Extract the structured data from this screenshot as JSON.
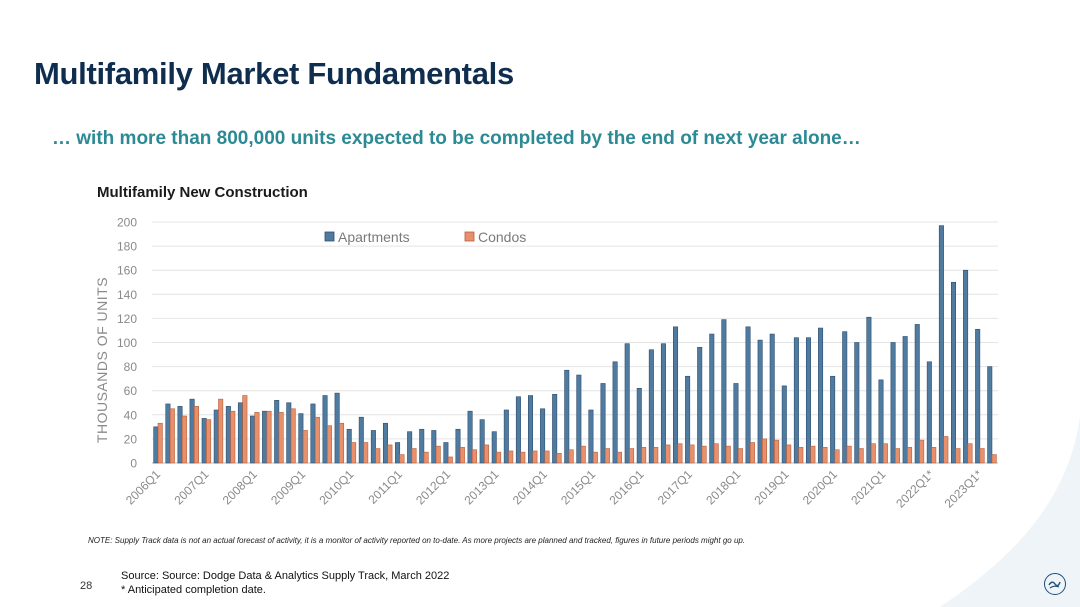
{
  "header": {
    "title": "Multifamily Market Fundamentals",
    "subtitle": "… with more than 800,000 units expected to be completed by the end of next year alone…"
  },
  "footer": {
    "page_number": "28",
    "source_line1": "Source: Source: Dodge Data & Analytics Supply Track, March 2022",
    "source_line2": "* Anticipated completion date.",
    "note": "NOTE:  Supply Track data is not an actual forecast of activity, it is a monitor of activity reported on to-date. As more projects are planned and tracked, figures in future periods might go up."
  },
  "colors": {
    "apartments": "#4f7ba0",
    "condos": "#e8906c",
    "title": "#0f2d4f",
    "subtitle": "#2c8a95"
  },
  "chart_data": {
    "type": "bar",
    "title": "Multifamily New Construction",
    "ylabel": "THOUSANDS OF UNITS",
    "xlabel": "",
    "ylim": [
      0,
      200
    ],
    "yticks": [
      0,
      20,
      40,
      60,
      80,
      100,
      120,
      140,
      160,
      180,
      200
    ],
    "grid": true,
    "legend": "top",
    "x_tick_labels": [
      "2006Q1",
      "2007Q1",
      "2008Q1",
      "2009Q1",
      "2010Q1",
      "2011Q1",
      "2012Q1",
      "2013Q1",
      "2014Q1",
      "2015Q1",
      "2016Q1",
      "2017Q1",
      "2018Q1",
      "2019Q1",
      "2020Q1",
      "2021Q1",
      "2022Q1*",
      "2023Q1*"
    ],
    "series": [
      {
        "name": "Apartments",
        "values": [
          30,
          49,
          47,
          53,
          37,
          44,
          47,
          50,
          39,
          43,
          52,
          50,
          41,
          49,
          56,
          58,
          28,
          38,
          27,
          33,
          17,
          26,
          28,
          27,
          17,
          28,
          43,
          36,
          26,
          44,
          55,
          56,
          45,
          57,
          77,
          73,
          44,
          66,
          84,
          99,
          62,
          94,
          99,
          113,
          72,
          96,
          107,
          119,
          66,
          113,
          102,
          107,
          64,
          104,
          104,
          112,
          72,
          109,
          100,
          121,
          69,
          100,
          105,
          115,
          84,
          197,
          150,
          160,
          111,
          80
        ]
      },
      {
        "name": "Condos",
        "values": [
          33,
          45,
          39,
          47,
          36,
          53,
          43,
          56,
          42,
          43,
          42,
          45,
          27,
          38,
          31,
          33,
          17,
          17,
          12,
          15,
          7,
          12,
          9,
          14,
          5,
          13,
          11,
          15,
          9,
          10,
          9,
          10,
          10,
          8,
          11,
          14,
          9,
          12,
          9,
          12,
          13,
          13,
          15,
          16,
          15,
          14,
          16,
          14,
          12,
          17,
          20,
          19,
          15,
          13,
          14,
          13,
          11,
          14,
          12,
          16,
          16,
          12,
          13,
          19,
          13,
          22,
          12,
          16,
          12,
          7
        ]
      }
    ]
  }
}
